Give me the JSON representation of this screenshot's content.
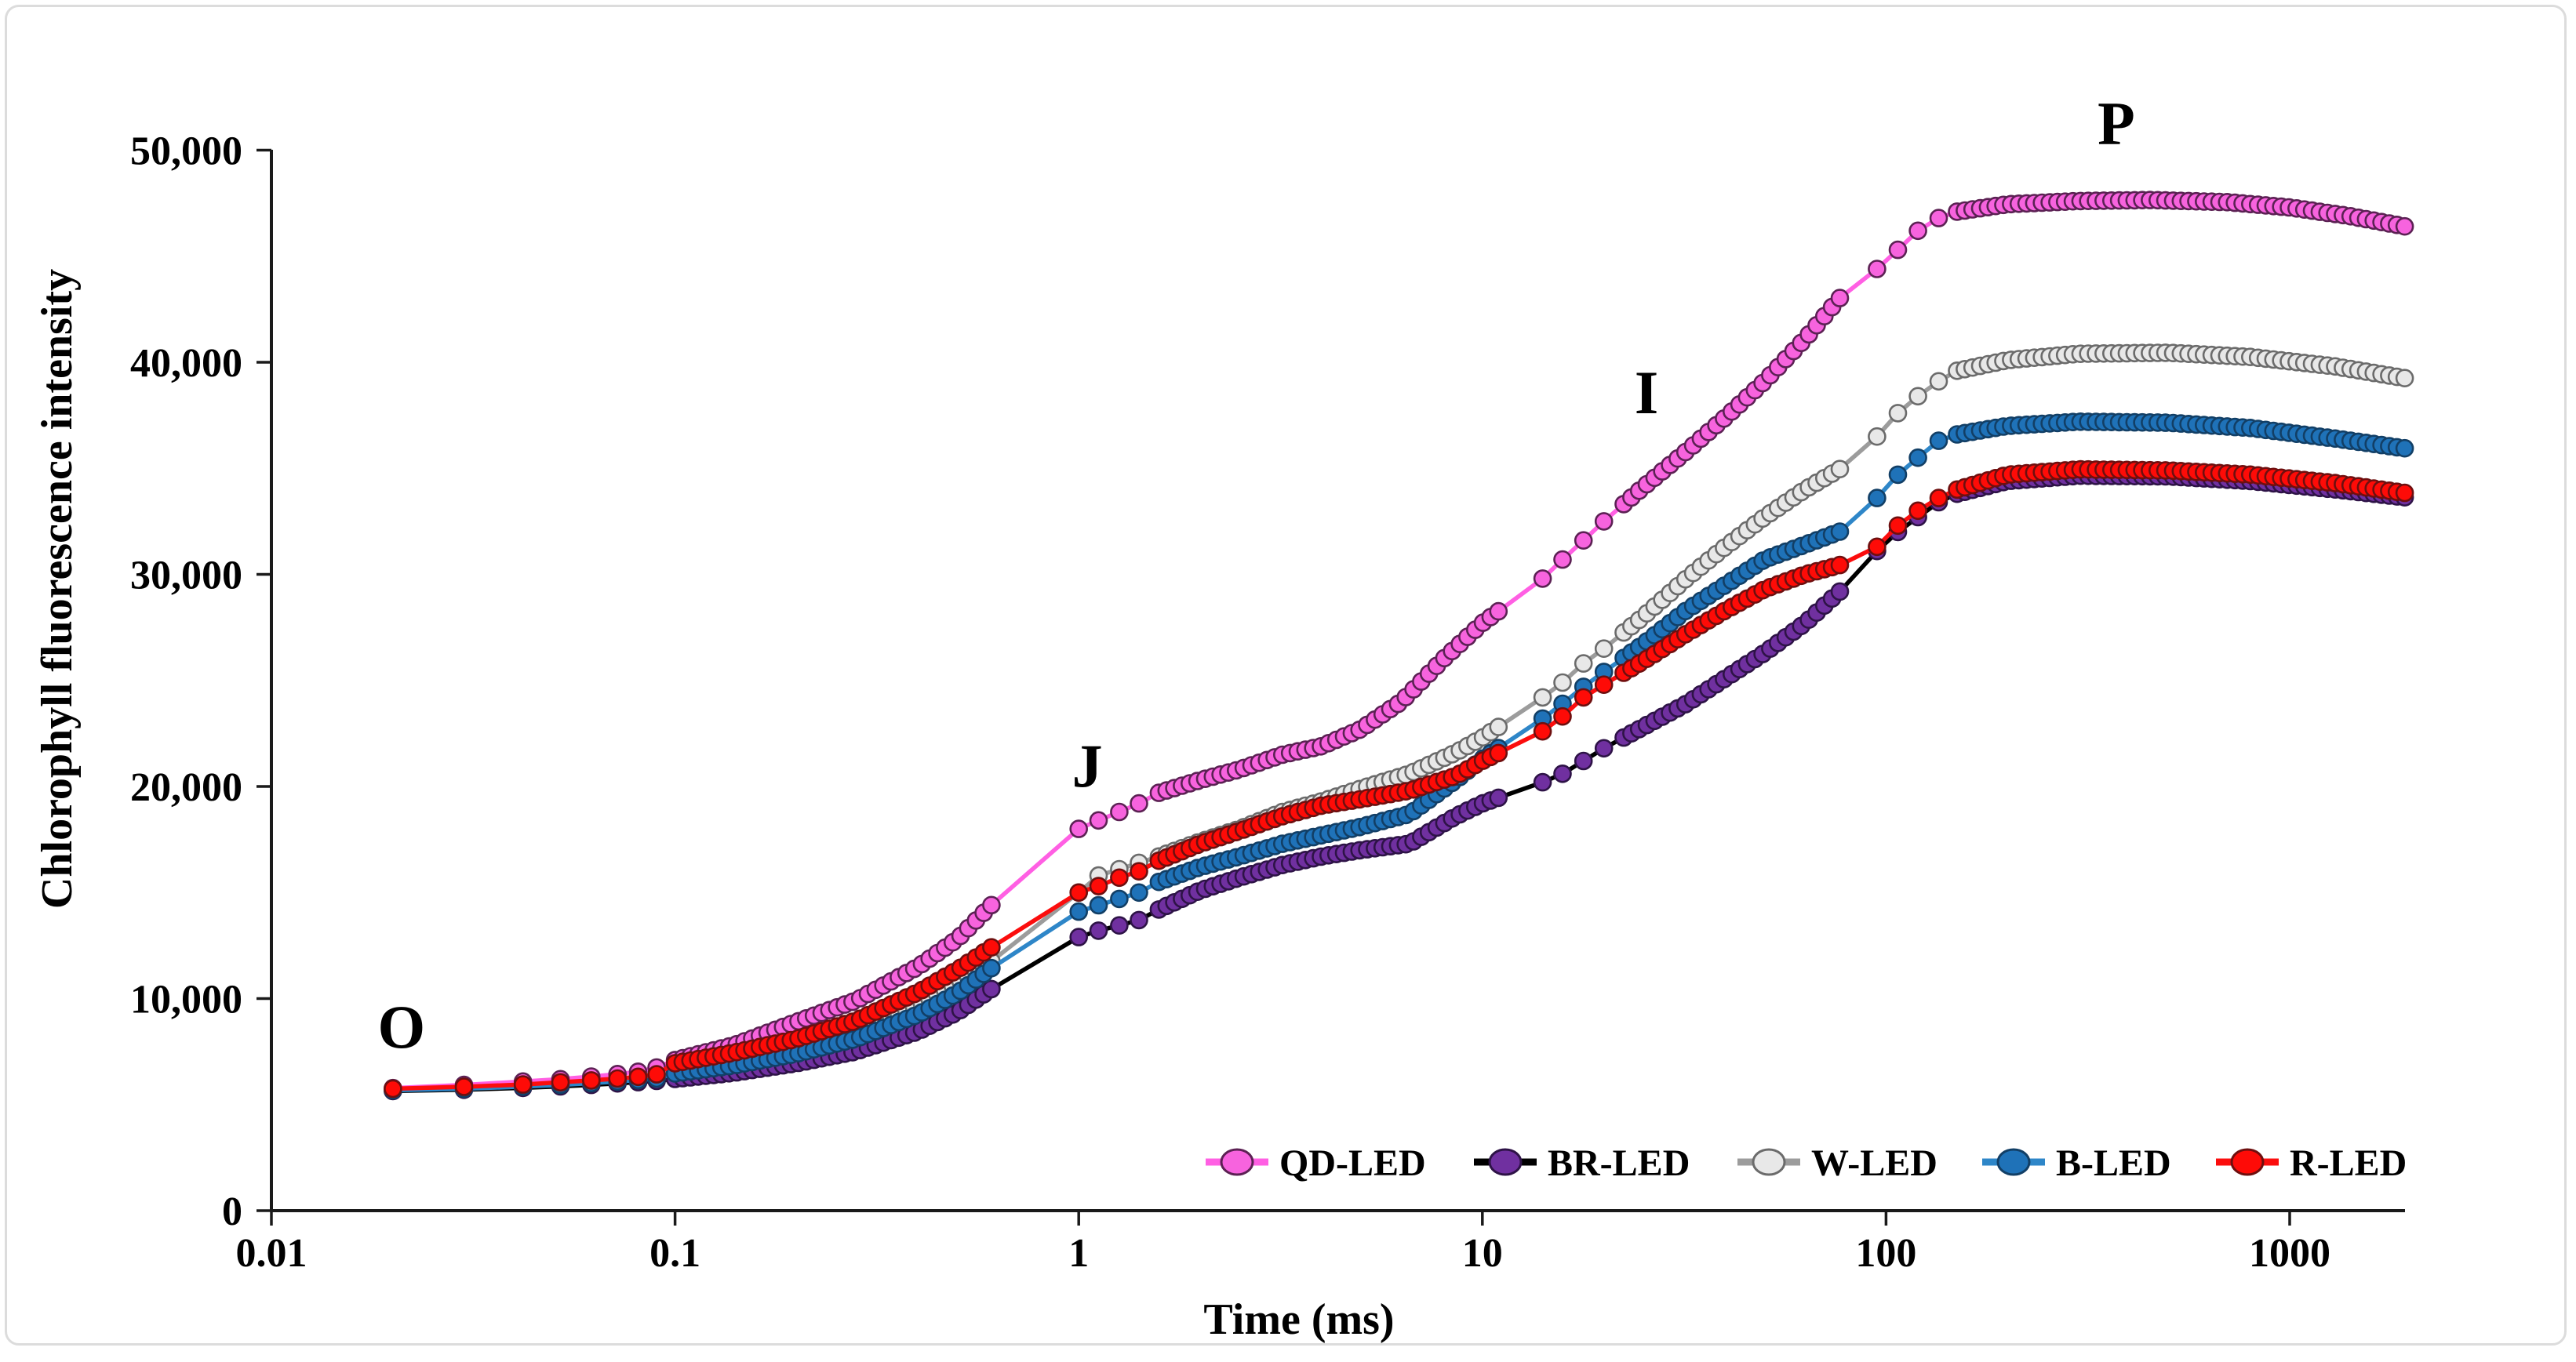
{
  "figure": {
    "background": "#ffffff",
    "border_color": "#dcdcdc"
  },
  "chart_data": {
    "type": "line",
    "title": "",
    "xlabel": "Time (ms)",
    "ylabel": "Chlorophyll fluorescence intensity",
    "x_axis": {
      "scale": "log",
      "range_ms": [
        0.01,
        2000
      ],
      "ticks": [
        "0.01",
        "0.1",
        "1",
        "10",
        "100",
        "1000"
      ],
      "tick_values": [
        0.01,
        0.1,
        1,
        10,
        100,
        1000
      ]
    },
    "y_axis": {
      "scale": "linear",
      "range": [
        0,
        50000
      ],
      "ticks": [
        "0",
        "10,000",
        "20,000",
        "30,000",
        "40,000",
        "50,000"
      ],
      "tick_values": [
        0,
        10000,
        20000,
        30000,
        40000,
        50000
      ]
    },
    "legend_position": "bottom",
    "grid": false,
    "annotations": [
      {
        "text": "O",
        "t": 0.021,
        "v": 8700
      },
      {
        "text": "J",
        "t": 1.05,
        "v": 21000
      },
      {
        "text": "I",
        "t": 25.5,
        "v": 38600
      },
      {
        "text": "P",
        "t": 372,
        "v": 51300
      }
    ],
    "sampling": {
      "sparse_times_ms": [
        0.02,
        0.03,
        0.042,
        0.052,
        0.062,
        0.072,
        0.081,
        0.09,
        1.0,
        1.12,
        1.26,
        1.41,
        14.1,
        15.8,
        17.8,
        20,
        95,
        107,
        120,
        135
      ],
      "dense_segments": [
        {
          "from": 0.1,
          "to": 0.63,
          "ratio": 1.045
        },
        {
          "from": 1.58,
          "to": 11.2,
          "ratio": 1.045
        },
        {
          "from": 22.4,
          "to": 79,
          "ratio": 1.045
        },
        {
          "from": 150,
          "to": 2000,
          "ratio": 1.045
        }
      ]
    },
    "series": [
      {
        "name": "QD-LED",
        "line_color": "#ff5fe3",
        "marker_fill": "#f763de",
        "marker_edge": "#5c2154",
        "points": [
          [
            0.02,
            5780
          ],
          [
            0.03,
            5930
          ],
          [
            0.042,
            6090
          ],
          [
            0.052,
            6200
          ],
          [
            0.062,
            6320
          ],
          [
            0.072,
            6440
          ],
          [
            0.081,
            6550
          ],
          [
            0.09,
            6750
          ],
          [
            0.1,
            7100
          ],
          [
            0.14,
            7800
          ],
          [
            0.2,
            8900
          ],
          [
            0.28,
            9900
          ],
          [
            0.4,
            11500
          ],
          [
            0.5,
            12800
          ],
          [
            0.63,
            14700
          ],
          [
            1.0,
            18000
          ],
          [
            1.12,
            18400
          ],
          [
            1.26,
            18800
          ],
          [
            1.41,
            19200
          ],
          [
            1.58,
            19700
          ],
          [
            2.0,
            20300
          ],
          [
            2.5,
            20800
          ],
          [
            3.2,
            21500
          ],
          [
            4.0,
            21900
          ],
          [
            5.0,
            22700
          ],
          [
            6.3,
            24000
          ],
          [
            8.0,
            26000
          ],
          [
            10,
            27700
          ],
          [
            14.1,
            29800
          ],
          [
            15.8,
            30700
          ],
          [
            17.8,
            31600
          ],
          [
            20,
            32500
          ],
          [
            25,
            34100
          ],
          [
            32,
            35800
          ],
          [
            40,
            37400
          ],
          [
            50,
            39100
          ],
          [
            63,
            41100
          ],
          [
            79,
            43300
          ],
          [
            95,
            44400
          ],
          [
            107,
            45300
          ],
          [
            120,
            46200
          ],
          [
            135,
            46800
          ],
          [
            150,
            47100
          ],
          [
            200,
            47450
          ],
          [
            300,
            47600
          ],
          [
            450,
            47650
          ],
          [
            700,
            47550
          ],
          [
            1000,
            47300
          ],
          [
            1400,
            46900
          ],
          [
            2000,
            46350
          ]
        ]
      },
      {
        "name": "BR-LED",
        "line_color": "#000000",
        "marker_fill": "#7030a0",
        "marker_edge": "#2e1347",
        "points": [
          [
            0.02,
            5640
          ],
          [
            0.03,
            5700
          ],
          [
            0.042,
            5790
          ],
          [
            0.052,
            5860
          ],
          [
            0.062,
            5930
          ],
          [
            0.072,
            6000
          ],
          [
            0.081,
            6060
          ],
          [
            0.09,
            6120
          ],
          [
            0.1,
            6210
          ],
          [
            0.14,
            6500
          ],
          [
            0.2,
            6950
          ],
          [
            0.28,
            7500
          ],
          [
            0.4,
            8450
          ],
          [
            0.5,
            9350
          ],
          [
            0.63,
            10650
          ],
          [
            1.0,
            12900
          ],
          [
            1.12,
            13200
          ],
          [
            1.26,
            13450
          ],
          [
            1.41,
            13700
          ],
          [
            1.58,
            14200
          ],
          [
            2.0,
            15100
          ],
          [
            2.5,
            15700
          ],
          [
            3.2,
            16300
          ],
          [
            4.0,
            16700
          ],
          [
            5.0,
            17000
          ],
          [
            6.6,
            17300
          ],
          [
            8.6,
            18600
          ],
          [
            10,
            19200
          ],
          [
            14.1,
            20200
          ],
          [
            15.8,
            20600
          ],
          [
            17.8,
            21200
          ],
          [
            20,
            21800
          ],
          [
            25,
            22800
          ],
          [
            32,
            23900
          ],
          [
            40,
            25100
          ],
          [
            50,
            26300
          ],
          [
            63,
            27700
          ],
          [
            79,
            29400
          ],
          [
            95,
            31100
          ],
          [
            107,
            32000
          ],
          [
            120,
            32700
          ],
          [
            135,
            33400
          ],
          [
            150,
            33800
          ],
          [
            200,
            34400
          ],
          [
            300,
            34650
          ],
          [
            500,
            34620
          ],
          [
            800,
            34400
          ],
          [
            1300,
            34000
          ],
          [
            2000,
            33600
          ]
        ]
      },
      {
        "name": "W-LED",
        "line_color": "#9c9c9c",
        "marker_fill": "#e8e8e8",
        "marker_edge": "#6b6b6b",
        "points": [
          [
            0.02,
            5710
          ],
          [
            0.03,
            5790
          ],
          [
            0.042,
            5890
          ],
          [
            0.052,
            5970
          ],
          [
            0.062,
            6050
          ],
          [
            0.072,
            6130
          ],
          [
            0.081,
            6200
          ],
          [
            0.09,
            6270
          ],
          [
            0.1,
            6550
          ],
          [
            0.14,
            7000
          ],
          [
            0.2,
            7650
          ],
          [
            0.28,
            8400
          ],
          [
            0.4,
            9650
          ],
          [
            0.5,
            10700
          ],
          [
            0.63,
            11950
          ],
          [
            1.0,
            15000
          ],
          [
            1.12,
            15800
          ],
          [
            1.26,
            16100
          ],
          [
            1.41,
            16400
          ],
          [
            1.58,
            16700
          ],
          [
            2.0,
            17400
          ],
          [
            2.5,
            18000
          ],
          [
            3.2,
            18800
          ],
          [
            4.0,
            19300
          ],
          [
            5.0,
            19900
          ],
          [
            6.6,
            20600
          ],
          [
            8.6,
            21600
          ],
          [
            10,
            22300
          ],
          [
            14.1,
            24200
          ],
          [
            15.8,
            24900
          ],
          [
            17.8,
            25800
          ],
          [
            20,
            26500
          ],
          [
            25,
            28000
          ],
          [
            32,
            29800
          ],
          [
            40,
            31300
          ],
          [
            50,
            32700
          ],
          [
            63,
            34000
          ],
          [
            79,
            35100
          ],
          [
            95,
            36500
          ],
          [
            107,
            37600
          ],
          [
            120,
            38400
          ],
          [
            135,
            39100
          ],
          [
            150,
            39600
          ],
          [
            200,
            40100
          ],
          [
            300,
            40400
          ],
          [
            500,
            40450
          ],
          [
            800,
            40250
          ],
          [
            1300,
            39800
          ],
          [
            2000,
            39200
          ]
        ]
      },
      {
        "name": "B-LED",
        "line_color": "#2e86c8",
        "marker_fill": "#1f72b8",
        "marker_edge": "#123f66",
        "points": [
          [
            0.02,
            5680
          ],
          [
            0.03,
            5750
          ],
          [
            0.042,
            5850
          ],
          [
            0.052,
            5930
          ],
          [
            0.062,
            6010
          ],
          [
            0.072,
            6090
          ],
          [
            0.081,
            6160
          ],
          [
            0.09,
            6230
          ],
          [
            0.1,
            6470
          ],
          [
            0.14,
            6850
          ],
          [
            0.2,
            7400
          ],
          [
            0.28,
            8100
          ],
          [
            0.4,
            9250
          ],
          [
            0.5,
            10250
          ],
          [
            0.63,
            11650
          ],
          [
            1.0,
            14100
          ],
          [
            1.12,
            14400
          ],
          [
            1.26,
            14700
          ],
          [
            1.41,
            15000
          ],
          [
            1.58,
            15500
          ],
          [
            2.0,
            16200
          ],
          [
            2.5,
            16700
          ],
          [
            3.2,
            17300
          ],
          [
            4.0,
            17700
          ],
          [
            5.0,
            18100
          ],
          [
            6.6,
            18700
          ],
          [
            8.6,
            20300
          ],
          [
            10,
            21300
          ],
          [
            14.1,
            23200
          ],
          [
            15.8,
            23900
          ],
          [
            17.8,
            24700
          ],
          [
            20,
            25400
          ],
          [
            25,
            26700
          ],
          [
            32,
            28300
          ],
          [
            40,
            29500
          ],
          [
            50,
            30700
          ],
          [
            63,
            31400
          ],
          [
            79,
            32100
          ],
          [
            95,
            33600
          ],
          [
            107,
            34700
          ],
          [
            120,
            35500
          ],
          [
            135,
            36300
          ],
          [
            150,
            36600
          ],
          [
            200,
            37000
          ],
          [
            300,
            37200
          ],
          [
            500,
            37150
          ],
          [
            800,
            36900
          ],
          [
            1300,
            36400
          ],
          [
            2000,
            35900
          ]
        ]
      },
      {
        "name": "R-LED",
        "line_color": "#fb0d0d",
        "marker_fill": "#fe0b07",
        "marker_edge": "#6e0f0f",
        "points": [
          [
            0.02,
            5750
          ],
          [
            0.03,
            5840
          ],
          [
            0.042,
            5950
          ],
          [
            0.052,
            6050
          ],
          [
            0.062,
            6140
          ],
          [
            0.072,
            6230
          ],
          [
            0.081,
            6310
          ],
          [
            0.09,
            6430
          ],
          [
            0.1,
            6950
          ],
          [
            0.14,
            7450
          ],
          [
            0.2,
            8100
          ],
          [
            0.28,
            8950
          ],
          [
            0.4,
            10300
          ],
          [
            0.5,
            11350
          ],
          [
            0.63,
            12610
          ],
          [
            1.0,
            15000
          ],
          [
            1.12,
            15300
          ],
          [
            1.26,
            15700
          ],
          [
            1.41,
            16000
          ],
          [
            1.58,
            16500
          ],
          [
            2.0,
            17300
          ],
          [
            2.5,
            17900
          ],
          [
            3.2,
            18600
          ],
          [
            4.0,
            19100
          ],
          [
            5.0,
            19400
          ],
          [
            6.6,
            19800
          ],
          [
            8.6,
            20500
          ],
          [
            10,
            21200
          ],
          [
            14.1,
            22600
          ],
          [
            15.8,
            23300
          ],
          [
            17.8,
            24200
          ],
          [
            20,
            24800
          ],
          [
            25,
            25900
          ],
          [
            32,
            27200
          ],
          [
            40,
            28300
          ],
          [
            50,
            29300
          ],
          [
            63,
            30000
          ],
          [
            79,
            30500
          ],
          [
            95,
            31300
          ],
          [
            107,
            32300
          ],
          [
            120,
            33000
          ],
          [
            135,
            33600
          ],
          [
            150,
            34000
          ],
          [
            200,
            34700
          ],
          [
            300,
            34950
          ],
          [
            500,
            34900
          ],
          [
            800,
            34700
          ],
          [
            1300,
            34300
          ],
          [
            2000,
            33800
          ]
        ]
      }
    ]
  }
}
